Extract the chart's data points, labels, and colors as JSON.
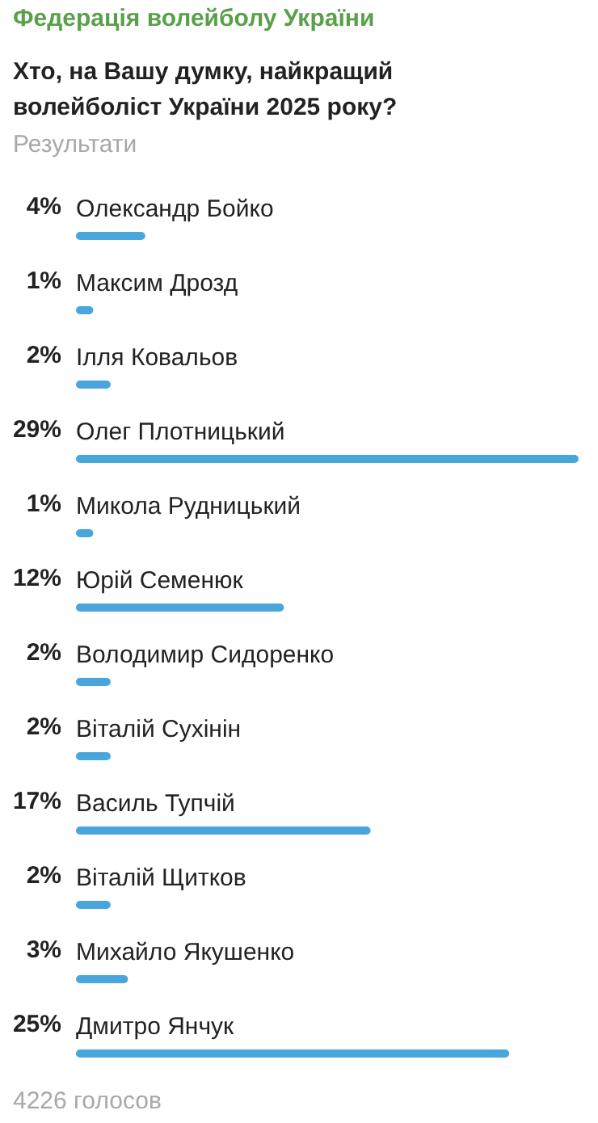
{
  "chart_data": {
    "type": "bar",
    "orientation": "horizontal",
    "title": "Хто, на Вашу думку, найкращий волейболіст України 2025 року?",
    "annotations": [
      "Федерація волейболу України",
      "Результати",
      "4226 голосов"
    ],
    "categories": [
      "Олександр Бойко",
      "Максим Дрозд",
      "Ілля Ковальов",
      "Олег Плотницький",
      "Микола Рудницький",
      "Юрій Семенюк",
      "Володимир Сидоренко",
      "Віталій Сухінін",
      "Василь Тупчій",
      "Віталій Щитков",
      "Михайло Якушенко",
      "Дмитро Янчук"
    ],
    "values": [
      4,
      1,
      2,
      29,
      1,
      12,
      2,
      2,
      17,
      2,
      3,
      25
    ],
    "value_labels": [
      "4%",
      "1%",
      "2%",
      "29%",
      "1%",
      "12%",
      "2%",
      "2%",
      "17%",
      "2%",
      "3%",
      "25%"
    ],
    "color": "#48a6dc",
    "grid": false
  }
}
